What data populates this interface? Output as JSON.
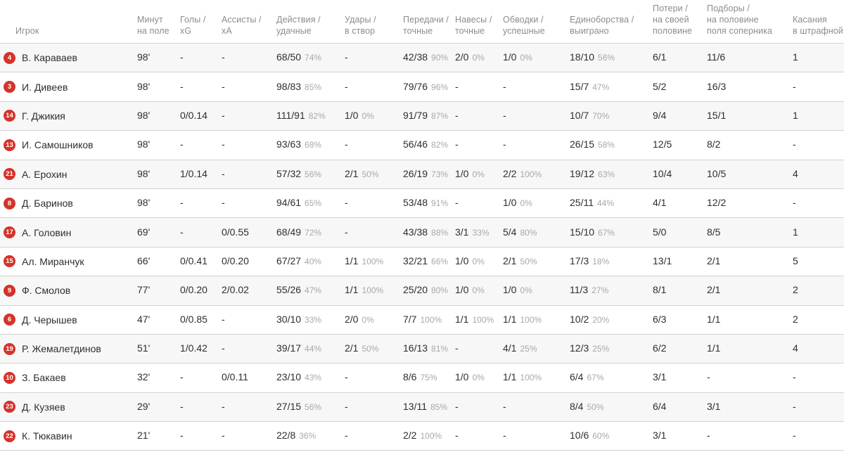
{
  "table": {
    "columns": [
      {
        "id": "player",
        "label_lines": [
          "Игрок"
        ]
      },
      {
        "id": "minutes",
        "label_lines": [
          "Минут",
          "на поле"
        ]
      },
      {
        "id": "goals-xg",
        "label_lines": [
          "Голы /",
          "xG"
        ]
      },
      {
        "id": "assists-xa",
        "label_lines": [
          "Ассисты /",
          "xA"
        ]
      },
      {
        "id": "actions",
        "label_lines": [
          "Действия /",
          "удачные"
        ]
      },
      {
        "id": "shots",
        "label_lines": [
          "Удары /",
          "в створ"
        ]
      },
      {
        "id": "passes",
        "label_lines": [
          "Передачи /",
          "точные"
        ]
      },
      {
        "id": "crosses",
        "label_lines": [
          "Навесы /",
          "точные"
        ]
      },
      {
        "id": "dribbles",
        "label_lines": [
          "Обводки /",
          "успешные"
        ]
      },
      {
        "id": "duels",
        "label_lines": [
          "Единоборства /",
          "выиграно"
        ]
      },
      {
        "id": "losses",
        "label_lines": [
          "Потери /",
          "на своей",
          "половине"
        ]
      },
      {
        "id": "recoveries",
        "label_lines": [
          "Подборы /",
          "на половине",
          "поля соперника"
        ]
      },
      {
        "id": "touches",
        "label_lines": [
          "Касания",
          "в штрафной"
        ]
      }
    ],
    "rows": [
      {
        "number": "4",
        "name": "В. Караваев",
        "cells": [
          "98'",
          "-",
          "-",
          "68/50|74%",
          "-",
          "42/38|90%",
          "2/0|0%",
          "1/0|0%",
          "18/10|56%",
          "6/1",
          "11/6",
          "1"
        ]
      },
      {
        "number": "3",
        "name": "И. Дивеев",
        "cells": [
          "98'",
          "-",
          "-",
          "98/83|85%",
          "-",
          "79/76|96%",
          "-",
          "-",
          "15/7|47%",
          "5/2",
          "16/3",
          "-"
        ]
      },
      {
        "number": "14",
        "name": "Г. Джикия",
        "cells": [
          "98'",
          "0/0.14",
          "-",
          "111/91|82%",
          "1/0|0%",
          "91/79|87%",
          "-",
          "-",
          "10/7|70%",
          "9/4",
          "15/1",
          "1"
        ]
      },
      {
        "number": "13",
        "name": "И. Самошников",
        "cells": [
          "98'",
          "-",
          "-",
          "93/63|68%",
          "-",
          "56/46|82%",
          "-",
          "-",
          "26/15|58%",
          "12/5",
          "8/2",
          "-"
        ]
      },
      {
        "number": "21",
        "name": "А. Ерохин",
        "cells": [
          "98'",
          "1/0.14",
          "-",
          "57/32|56%",
          "2/1|50%",
          "26/19|73%",
          "1/0|0%",
          "2/2|100%",
          "19/12|63%",
          "10/4",
          "10/5",
          "4"
        ]
      },
      {
        "number": "8",
        "name": "Д. Баринов",
        "cells": [
          "98'",
          "-",
          "-",
          "94/61|65%",
          "-",
          "53/48|91%",
          "-",
          "1/0|0%",
          "25/11|44%",
          "4/1",
          "12/2",
          "-"
        ]
      },
      {
        "number": "17",
        "name": "А. Головин",
        "cells": [
          "69'",
          "-",
          "0/0.55",
          "68/49|72%",
          "-",
          "43/38|88%",
          "3/1|33%",
          "5/4|80%",
          "15/10|67%",
          "5/0",
          "8/5",
          "1"
        ]
      },
      {
        "number": "15",
        "name": "Ал. Миранчук",
        "cells": [
          "66'",
          "0/0.41",
          "0/0.20",
          "67/27|40%",
          "1/1|100%",
          "32/21|66%",
          "1/0|0%",
          "2/1|50%",
          "17/3|18%",
          "13/1",
          "2/1",
          "5"
        ]
      },
      {
        "number": "9",
        "name": "Ф. Смолов",
        "cells": [
          "77'",
          "0/0.20",
          "2/0.02",
          "55/26|47%",
          "1/1|100%",
          "25/20|80%",
          "1/0|0%",
          "1/0|0%",
          "11/3|27%",
          "8/1",
          "2/1",
          "2"
        ]
      },
      {
        "number": "6",
        "name": "Д. Черышев",
        "cells": [
          "47'",
          "0/0.85",
          "-",
          "30/10|33%",
          "2/0|0%",
          "7/7|100%",
          "1/1|100%",
          "1/1|100%",
          "10/2|20%",
          "6/3",
          "1/1",
          "2"
        ]
      },
      {
        "number": "19",
        "name": "Р. Жемалетдинов",
        "cells": [
          "51'",
          "1/0.42",
          "-",
          "39/17|44%",
          "2/1|50%",
          "16/13|81%",
          "-",
          "4/1|25%",
          "12/3|25%",
          "6/2",
          "1/1",
          "4"
        ]
      },
      {
        "number": "10",
        "name": "З. Бакаев",
        "cells": [
          "32'",
          "-",
          "0/0.11",
          "23/10|43%",
          "-",
          "8/6|75%",
          "1/0|0%",
          "1/1|100%",
          "6/4|67%",
          "3/1",
          "-",
          "-"
        ]
      },
      {
        "number": "23",
        "name": "Д. Кузяев",
        "cells": [
          "29'",
          "-",
          "-",
          "27/15|56%",
          "-",
          "13/11|85%",
          "-",
          "-",
          "8/4|50%",
          "6/4",
          "3/1",
          "-"
        ]
      },
      {
        "number": "22",
        "name": "К. Тюкавин",
        "cells": [
          "21'",
          "-",
          "-",
          "22/8|36%",
          "-",
          "2/2|100%",
          "-",
          "-",
          "10/6|60%",
          "3/1",
          "-",
          "-"
        ]
      }
    ]
  },
  "colors": {
    "badge_red": "#d4332a",
    "row_alt_bg": "#f7f7f7",
    "divider": "#d2d2d2",
    "header_text": "#8c8c8c",
    "value_text": "#2e2e2e",
    "pct_text": "#a8a8a8"
  }
}
